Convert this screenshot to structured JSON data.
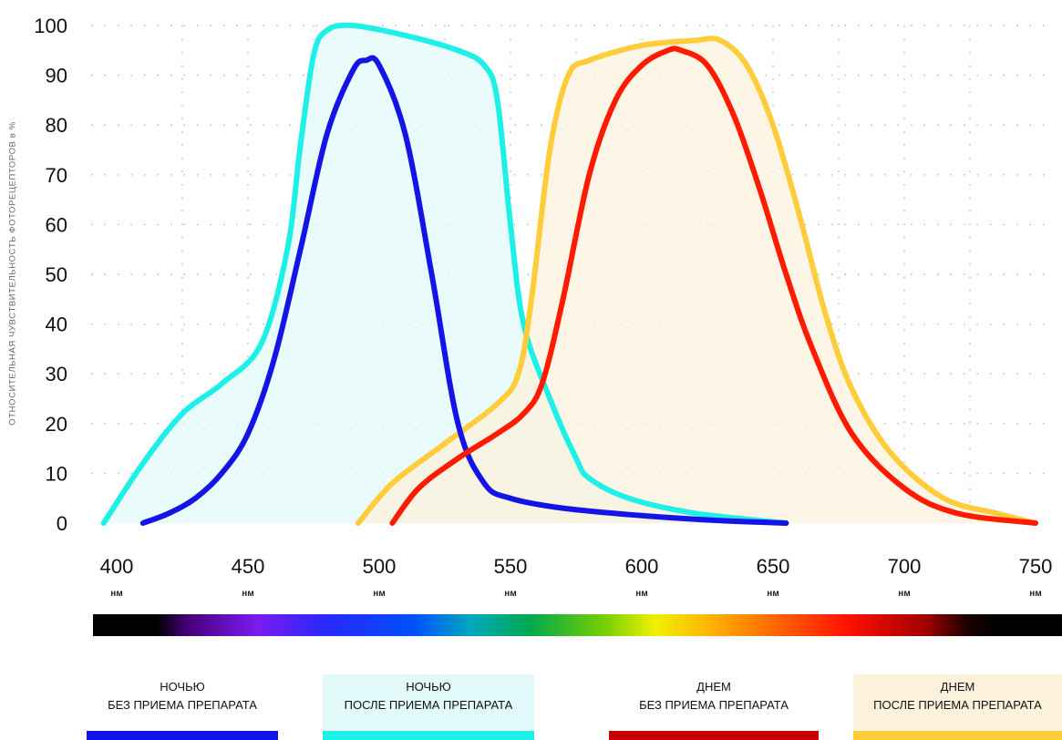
{
  "chart_data": {
    "type": "line",
    "ylabel": "ОТНОСИТЕЛЬНАЯ ЧУВСТВИТЕЛЬНОСТЬ ФОТОРЕЦЕПТОРОВ в %",
    "xunit": "нм",
    "xlim": [
      400,
      750
    ],
    "ylim": [
      0,
      100
    ],
    "xticks": [
      400,
      450,
      500,
      550,
      600,
      650,
      700,
      750
    ],
    "yticks": [
      0,
      10,
      20,
      30,
      40,
      50,
      60,
      70,
      80,
      90,
      100
    ],
    "grid": true,
    "series": [
      {
        "name": "НОЧЬЮ БЕЗ ПРИЕМА ПРЕПАРАТА",
        "color": "#1414e6",
        "fill": false,
        "points": [
          [
            410,
            0
          ],
          [
            420,
            2
          ],
          [
            430,
            5
          ],
          [
            440,
            10
          ],
          [
            450,
            18
          ],
          [
            460,
            33
          ],
          [
            470,
            55
          ],
          [
            480,
            78
          ],
          [
            490,
            91
          ],
          [
            495,
            93
          ],
          [
            500,
            92
          ],
          [
            510,
            78
          ],
          [
            520,
            50
          ],
          [
            530,
            20
          ],
          [
            540,
            8
          ],
          [
            550,
            5
          ],
          [
            570,
            3
          ],
          [
            600,
            1.5
          ],
          [
            630,
            0.5
          ],
          [
            655,
            0
          ]
        ]
      },
      {
        "name": "НОЧЬЮ ПОСЛЕ ПРИЕМА ПРЕПАРАТА",
        "color": "#1ef0e8",
        "fill": true,
        "fillColor": "#e2fafa",
        "points": [
          [
            395,
            0
          ],
          [
            410,
            12
          ],
          [
            425,
            22
          ],
          [
            440,
            28
          ],
          [
            455,
            36
          ],
          [
            465,
            55
          ],
          [
            470,
            76
          ],
          [
            475,
            94
          ],
          [
            480,
            99
          ],
          [
            490,
            100
          ],
          [
            510,
            98
          ],
          [
            530,
            95
          ],
          [
            540,
            92
          ],
          [
            545,
            85
          ],
          [
            550,
            60
          ],
          [
            555,
            40
          ],
          [
            565,
            25
          ],
          [
            575,
            13
          ],
          [
            580,
            9
          ],
          [
            595,
            5
          ],
          [
            620,
            2
          ],
          [
            655,
            0
          ]
        ]
      },
      {
        "name": "ДНЕМ БЕЗ ПРИЕМА ПРЕПАРАТА",
        "color": "#ff1a00",
        "fill": false,
        "points": [
          [
            505,
            0
          ],
          [
            515,
            7
          ],
          [
            530,
            13
          ],
          [
            545,
            18
          ],
          [
            555,
            22
          ],
          [
            562,
            28
          ],
          [
            570,
            45
          ],
          [
            580,
            70
          ],
          [
            590,
            85
          ],
          [
            600,
            92
          ],
          [
            610,
            95
          ],
          [
            615,
            95
          ],
          [
            625,
            92
          ],
          [
            635,
            82
          ],
          [
            645,
            67
          ],
          [
            655,
            50
          ],
          [
            665,
            35
          ],
          [
            680,
            18
          ],
          [
            700,
            7
          ],
          [
            720,
            2
          ],
          [
            750,
            0
          ]
        ]
      },
      {
        "name": "ДНЕМ ПОСЛЕ ПРИЕМА ПРЕПАРАТА",
        "color": "#ffcc3a",
        "fill": true,
        "fillColor": "#fcf2dc",
        "points": [
          [
            492,
            0
          ],
          [
            505,
            8
          ],
          [
            525,
            16
          ],
          [
            545,
            24
          ],
          [
            553,
            30
          ],
          [
            558,
            45
          ],
          [
            565,
            75
          ],
          [
            572,
            90
          ],
          [
            580,
            93
          ],
          [
            600,
            96
          ],
          [
            620,
            97
          ],
          [
            630,
            97
          ],
          [
            640,
            92
          ],
          [
            650,
            80
          ],
          [
            660,
            62
          ],
          [
            670,
            42
          ],
          [
            680,
            27
          ],
          [
            695,
            14
          ],
          [
            715,
            5
          ],
          [
            735,
            2
          ],
          [
            750,
            0
          ]
        ]
      }
    ],
    "spectrum_stops": [
      {
        "at": 0,
        "color": "#000000"
      },
      {
        "at": 0.065,
        "color": "#000000"
      },
      {
        "at": 0.1,
        "color": "#4a0080"
      },
      {
        "at": 0.17,
        "color": "#7a1cf0"
      },
      {
        "at": 0.24,
        "color": "#2828ff"
      },
      {
        "at": 0.33,
        "color": "#0050ff"
      },
      {
        "at": 0.39,
        "color": "#00a8c0"
      },
      {
        "at": 0.45,
        "color": "#00a850"
      },
      {
        "at": 0.53,
        "color": "#7ad000"
      },
      {
        "at": 0.58,
        "color": "#f0f000"
      },
      {
        "at": 0.64,
        "color": "#ffb000"
      },
      {
        "at": 0.71,
        "color": "#ff6000"
      },
      {
        "at": 0.78,
        "color": "#ff1000"
      },
      {
        "at": 0.86,
        "color": "#a00000"
      },
      {
        "at": 0.9,
        "color": "#200000"
      },
      {
        "at": 0.93,
        "color": "#000000"
      },
      {
        "at": 1,
        "color": "#000000"
      }
    ]
  },
  "legend": [
    {
      "line1": "НОЧЬЮ",
      "line2": "БЕЗ ПРИЕМА ПРЕПАРАТА",
      "color": "#1414e6",
      "bg": "#ffffff"
    },
    {
      "line1": "НОЧЬЮ",
      "line2": "ПОСЛЕ ПРИЕМА ПРЕПАРАТА",
      "color": "#1ef0e8",
      "bg": "#e2fafa"
    },
    {
      "line1": "ДНЕМ",
      "line2": "БЕЗ ПРИЕМА ПРЕПАРАТА",
      "color": "#c80000",
      "bg": "#ffffff"
    },
    {
      "line1": "ДНЕМ",
      "line2": "ПОСЛЕ ПРИЕМА ПРЕПАРАТА",
      "color": "#ffcc3a",
      "bg": "#fcf2dc"
    }
  ]
}
